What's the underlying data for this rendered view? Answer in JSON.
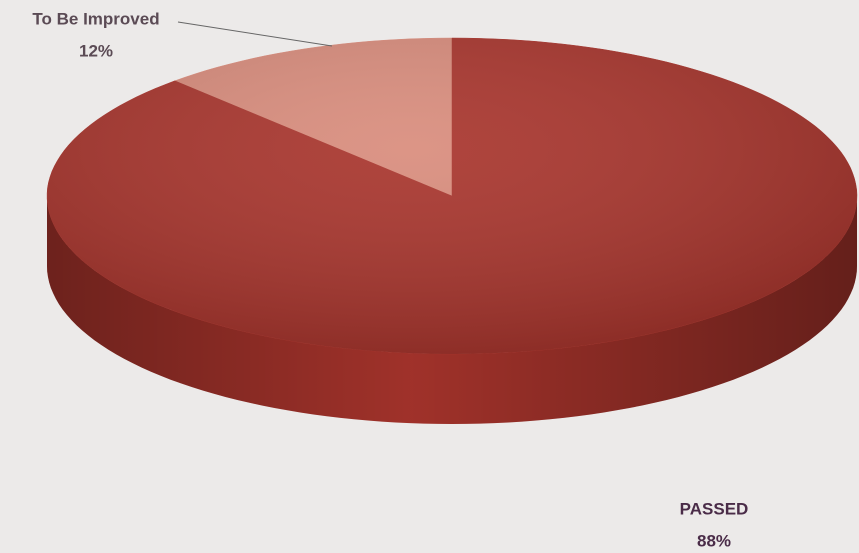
{
  "chart_data": {
    "type": "pie3d",
    "categories": [
      "To Be Improved",
      "PASSED"
    ],
    "values": [
      12,
      88
    ],
    "value_labels": [
      "12%",
      "88%"
    ],
    "colors": [
      "#d98c7c",
      "#a8342c"
    ]
  }
}
